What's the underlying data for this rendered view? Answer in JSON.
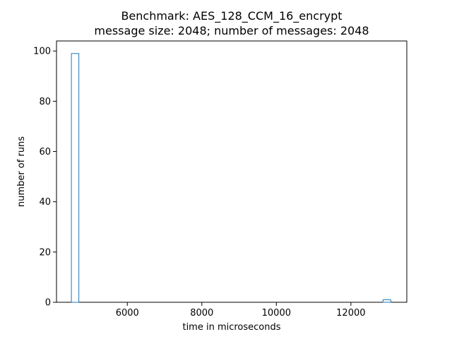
{
  "chart_data": {
    "type": "histogram",
    "title_line1": "Benchmark: AES_128_CCM_16_encrypt",
    "title_line2": "message size: 2048; number of messages: 2048",
    "xlabel": "time in microseconds",
    "ylabel": "number of runs",
    "xlim": [
      4100,
      13500
    ],
    "ylim": [
      0,
      104
    ],
    "xticks": [
      6000,
      8000,
      10000,
      12000
    ],
    "yticks": [
      0,
      20,
      40,
      60,
      80,
      100
    ],
    "bars": [
      {
        "x0": 4500,
        "x1": 4700,
        "count": 99
      },
      {
        "x0": 12860,
        "x1": 13070,
        "count": 1
      }
    ],
    "bar_color": "#1f77b4",
    "grid": false
  }
}
